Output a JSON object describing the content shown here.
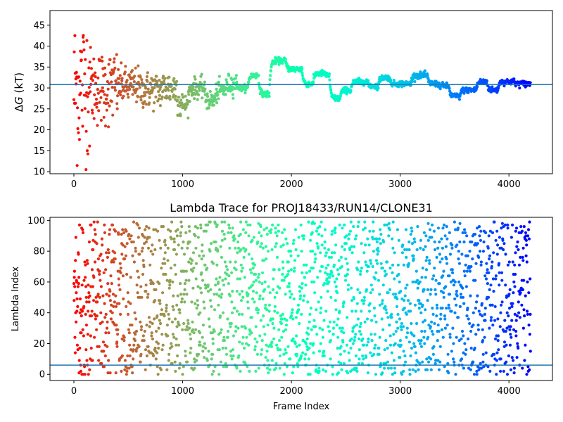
{
  "chart_data": [
    {
      "type": "scatter",
      "title": "",
      "xlabel": "",
      "ylabel": "ΔG (kT)",
      "ylabel_parts": [
        "Δ",
        "G",
        " (kT)"
      ],
      "xlim": [
        -220,
        4400
      ],
      "ylim": [
        9.5,
        48.5
      ],
      "xticks": [
        0,
        1000,
        2000,
        3000,
        4000
      ],
      "yticks": [
        10,
        15,
        20,
        25,
        30,
        35,
        40,
        45
      ],
      "hline": 30.8,
      "hline_color": "#1f77b4",
      "colormap": "rainbow (frame 0 red to frame 4200 violet)",
      "n_frames": 4200,
      "trace_segments": [
        [
          0,
          30
        ],
        [
          50,
          31
        ],
        [
          150,
          30
        ],
        [
          350,
          30.5
        ],
        [
          600,
          29.5
        ],
        [
          800,
          30
        ],
        [
          950,
          26
        ],
        [
          1050,
          30
        ],
        [
          1200,
          27
        ],
        [
          1300,
          29.5
        ],
        [
          1400,
          31
        ],
        [
          1500,
          30
        ],
        [
          1600,
          33
        ],
        [
          1700,
          28.5
        ],
        [
          1800,
          36.5
        ],
        [
          1950,
          34.5
        ],
        [
          2100,
          31
        ],
        [
          2200,
          33.5
        ],
        [
          2300,
          33
        ],
        [
          2350,
          27.5
        ],
        [
          2450,
          29.5
        ],
        [
          2550,
          31.5
        ],
        [
          2700,
          30.5
        ],
        [
          2800,
          32.5
        ],
        [
          2900,
          31
        ],
        [
          3100,
          33
        ],
        [
          3250,
          31
        ],
        [
          3350,
          30.5
        ],
        [
          3450,
          28
        ],
        [
          3550,
          29.5
        ],
        [
          3700,
          31.5
        ],
        [
          3800,
          29.5
        ],
        [
          3900,
          31.5
        ],
        [
          4050,
          31
        ],
        [
          4200,
          29.8
        ]
      ]
    },
    {
      "type": "scatter",
      "title": "Lambda Trace for PROJ18433/RUN14/CLONE31",
      "xlabel": "Frame Index",
      "ylabel": "Lambda Index",
      "xlim": [
        -220,
        4400
      ],
      "ylim": [
        -4,
        102
      ],
      "xticks": [
        0,
        1000,
        2000,
        3000,
        4000
      ],
      "yticks": [
        0,
        20,
        40,
        60,
        80,
        100
      ],
      "hline": 6,
      "hline_color": "#1f77b4",
      "colormap": "rainbow (frame 0 red to frame 4200 violet)",
      "n_frames": 4200,
      "lambda_range": [
        0,
        99
      ]
    }
  ],
  "colors": {
    "axes": "#000000",
    "background": "#ffffff",
    "reference_line": "#1f77b4"
  }
}
